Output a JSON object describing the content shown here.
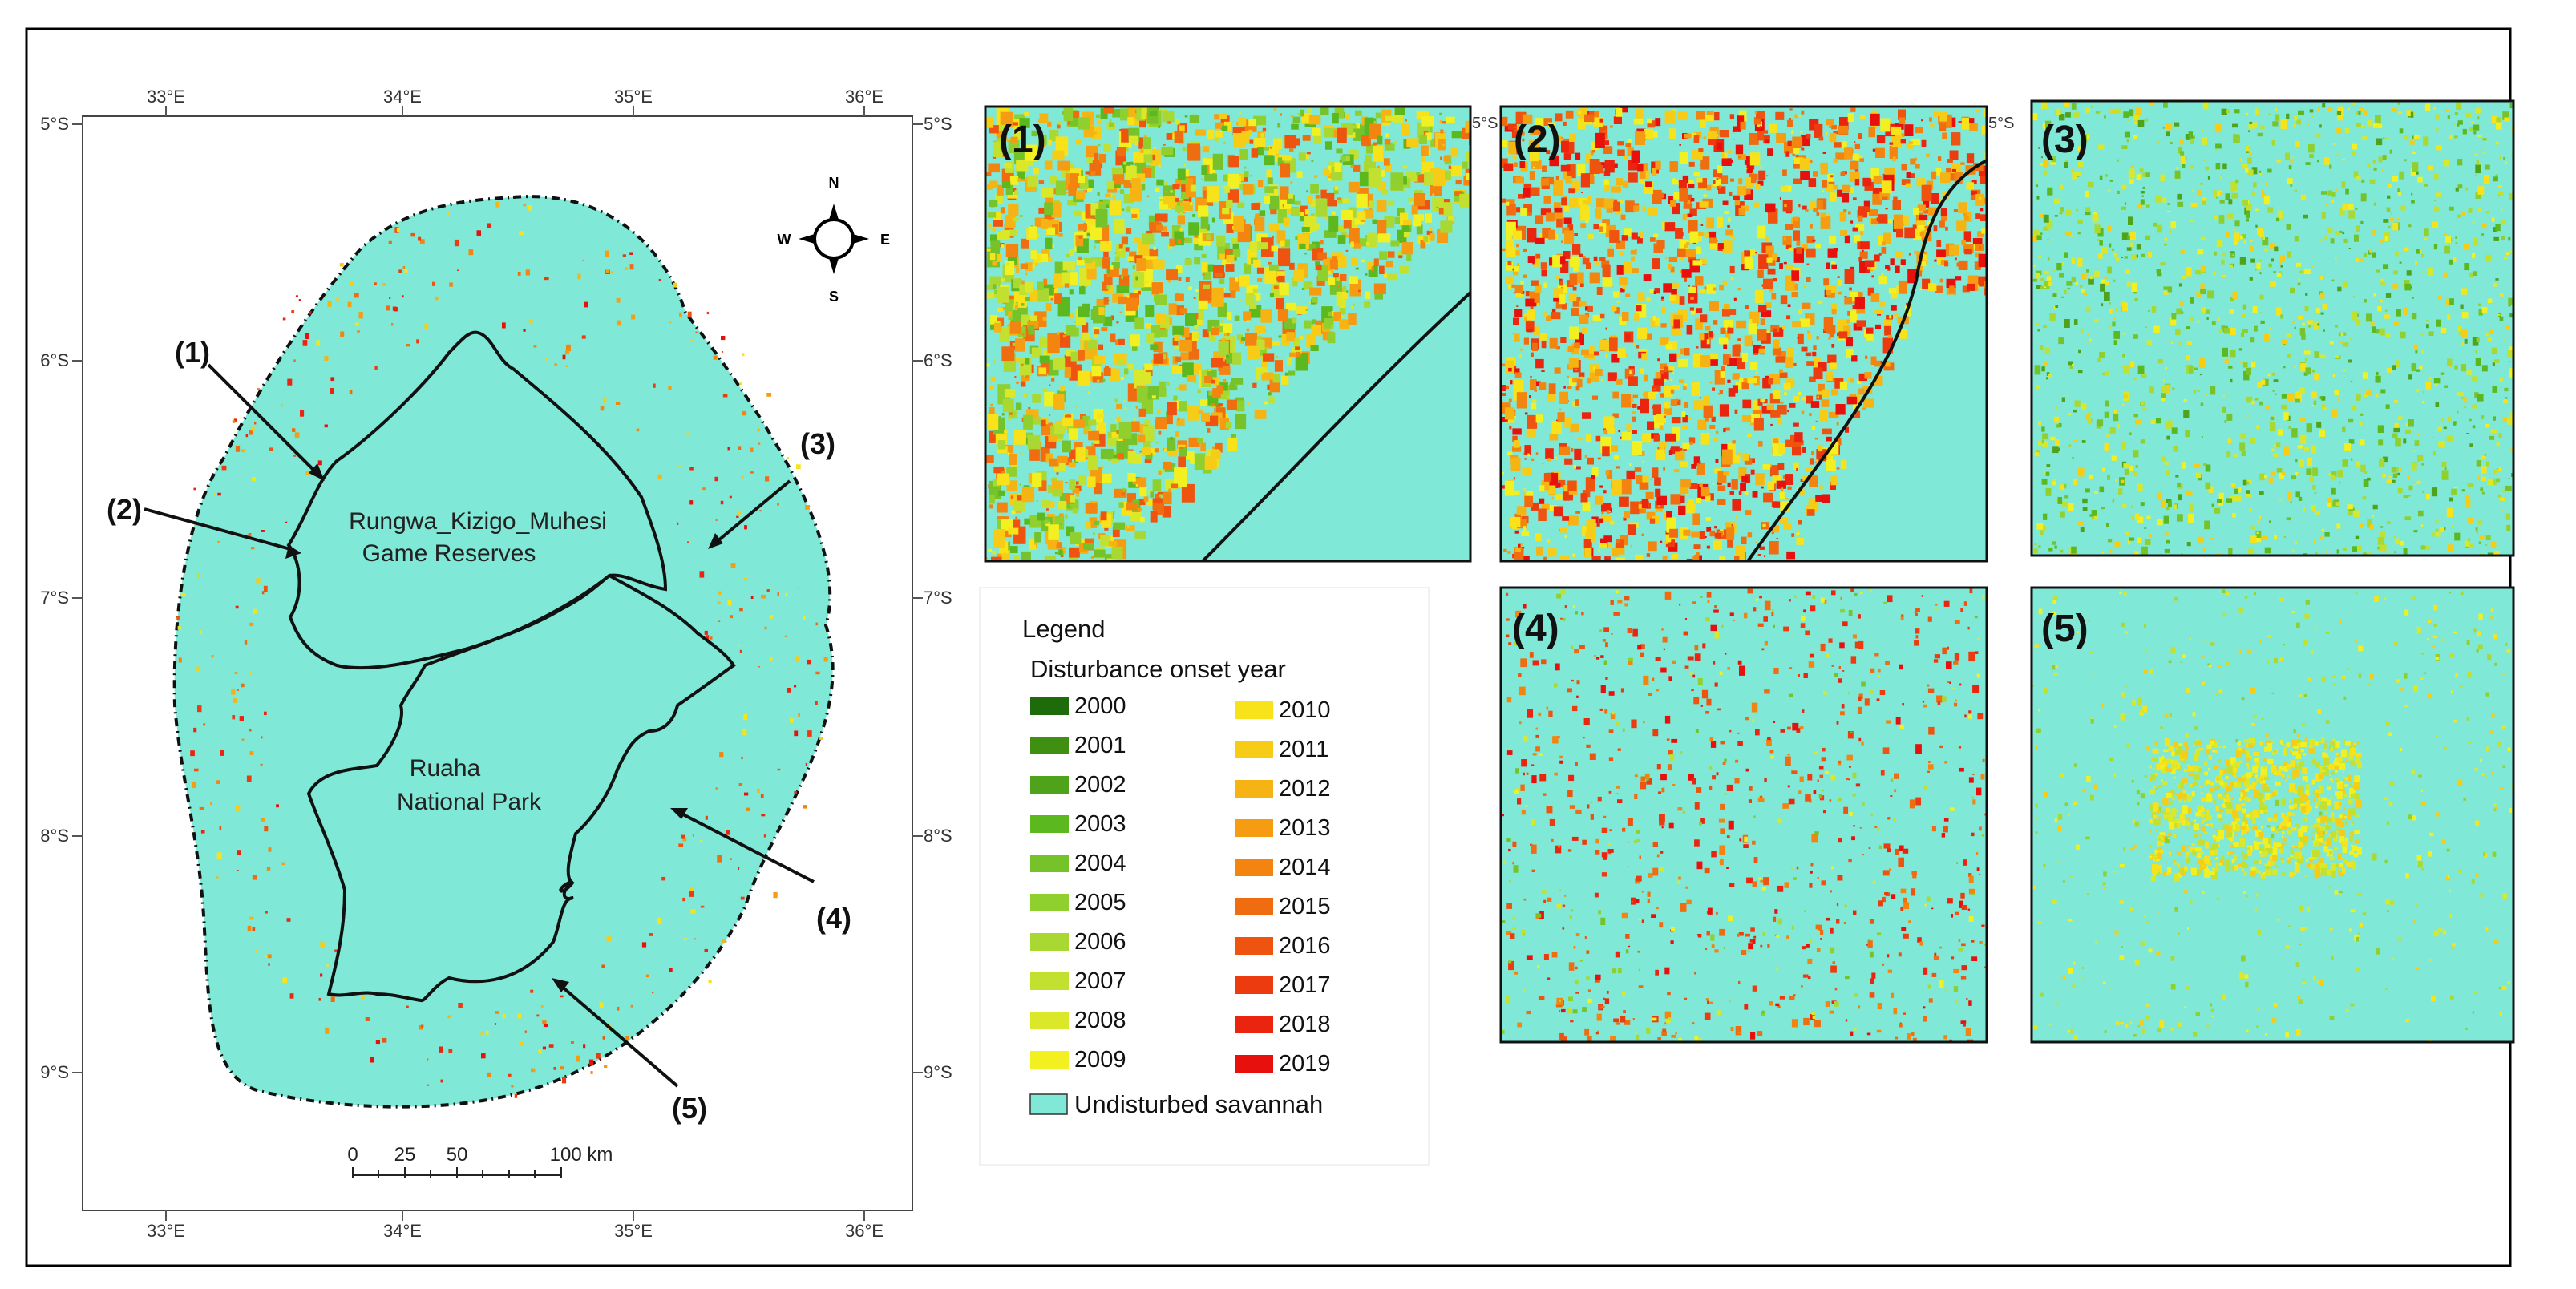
{
  "main_map": {
    "lon_labels": [
      "33°E",
      "34°E",
      "35°E",
      "36°E"
    ],
    "lat_labels": [
      "5°S",
      "6°S",
      "7°S",
      "8°S",
      "9°S"
    ],
    "reserve_label": [
      "Rungwa_Kizigo_Muhesi",
      "Game Reserves"
    ],
    "park_label": [
      "Ruaha",
      "National Park"
    ],
    "callouts": [
      "(1)",
      "(2)",
      "(3)",
      "(4)",
      "(5)"
    ],
    "compass": {
      "n": "N",
      "s": "S",
      "e": "E",
      "w": "W"
    },
    "scalebar": {
      "ticks": [
        "0",
        "25",
        "50"
      ],
      "end": "100 km"
    }
  },
  "insets": [
    {
      "label": "(1)",
      "corner_lon": "",
      "corner_lat": "5°S"
    },
    {
      "label": "(2)",
      "corner_lon": "",
      "corner_lat": "5°S"
    },
    {
      "label": "(3)"
    },
    {
      "label": "(4)"
    },
    {
      "label": "(5)"
    }
  ],
  "legend": {
    "title": "Legend",
    "subtitle": "Disturbance onset year",
    "undisturbed_label": "Undisturbed savannah",
    "undisturbed_color": "#7fe8d6",
    "years": [
      {
        "year": "2000",
        "color": "#1e6b0c"
      },
      {
        "year": "2001",
        "color": "#3f8f12"
      },
      {
        "year": "2002",
        "color": "#4ea31a"
      },
      {
        "year": "2003",
        "color": "#5cb81f"
      },
      {
        "year": "2004",
        "color": "#76c22a"
      },
      {
        "year": "2005",
        "color": "#8fd02e"
      },
      {
        "year": "2006",
        "color": "#a9d833"
      },
      {
        "year": "2007",
        "color": "#c2e02f"
      },
      {
        "year": "2008",
        "color": "#dbe82a"
      },
      {
        "year": "2009",
        "color": "#f2f020"
      },
      {
        "year": "2010",
        "color": "#f8e31a"
      },
      {
        "year": "2011",
        "color": "#f7cc16"
      },
      {
        "year": "2012",
        "color": "#f6b414"
      },
      {
        "year": "2013",
        "color": "#f59c12"
      },
      {
        "year": "2014",
        "color": "#f38410"
      },
      {
        "year": "2015",
        "color": "#f06c10"
      },
      {
        "year": "2016",
        "color": "#ee5410"
      },
      {
        "year": "2017",
        "color": "#ec3c0f"
      },
      {
        "year": "2018",
        "color": "#ea240e"
      },
      {
        "year": "2019",
        "color": "#e8100d"
      }
    ]
  },
  "colors": {
    "savannah": "#7fe8d6",
    "boundary": "#000000"
  }
}
